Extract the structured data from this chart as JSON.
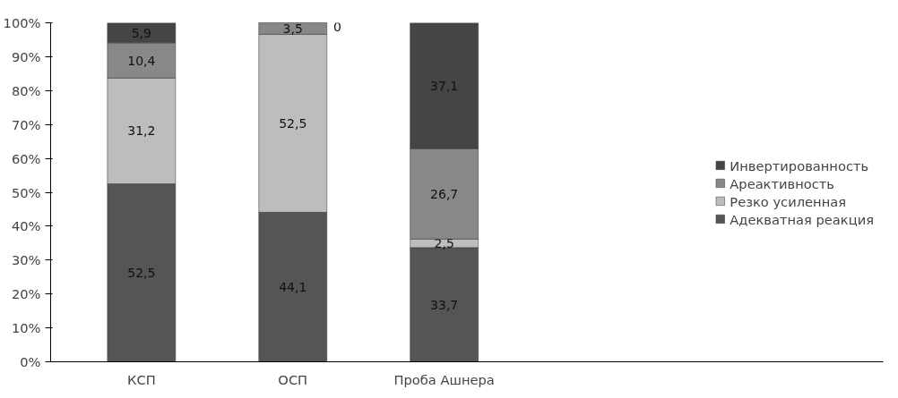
{
  "chart_data": {
    "type": "bar",
    "stacked": true,
    "categories": [
      "КСП",
      "ОСП",
      "Проба Ашнера"
    ],
    "series": [
      {
        "name": "Адекватная реакция",
        "color": "#555555",
        "values": [
          52.5,
          44.1,
          33.7
        ],
        "value_labels": [
          "52,5",
          "44,1",
          "33,7"
        ]
      },
      {
        "name": "Резко усиленная",
        "color": "#bdbdbd",
        "values": [
          31.2,
          52.5,
          2.5
        ],
        "value_labels": [
          "31,2",
          "52,5",
          "2,5"
        ]
      },
      {
        "name": "Ареактивность",
        "color": "#888888",
        "values": [
          10.4,
          3.5,
          26.7
        ],
        "value_labels": [
          "10,4",
          "3,5",
          "26,7"
        ]
      },
      {
        "name": "Инвертированность",
        "color": "#454545",
        "values": [
          5.9,
          0,
          37.1
        ],
        "value_labels": [
          "5,9",
          "0",
          "37,1"
        ]
      }
    ],
    "ylim": [
      0,
      100
    ],
    "yticks": [
      {
        "value": 0,
        "label": "0%"
      },
      {
        "value": 10,
        "label": "10%"
      },
      {
        "value": 20,
        "label": "20%"
      },
      {
        "value": 30,
        "label": "30%"
      },
      {
        "value": 40,
        "label": "40%"
      },
      {
        "value": 50,
        "label": "50%"
      },
      {
        "value": 60,
        "label": "60%"
      },
      {
        "value": 70,
        "label": "70%"
      },
      {
        "value": 80,
        "label": "80%"
      },
      {
        "value": 90,
        "label": "90%"
      },
      {
        "value": 100,
        "label": "100%"
      }
    ],
    "grid": false,
    "legend": "right"
  }
}
